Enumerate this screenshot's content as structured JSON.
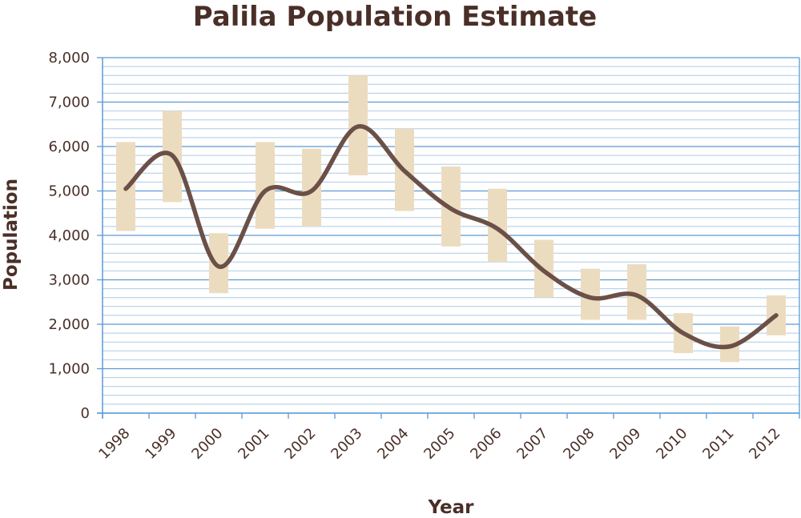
{
  "chart_data": {
    "type": "line",
    "title": "Palila Population Estimate",
    "xlabel": "Year",
    "ylabel": "Population",
    "ylim": [
      0,
      8000
    ],
    "yticks": [
      "0",
      "1,000",
      "2,000",
      "3,000",
      "4,000",
      "5,000",
      "6,000",
      "7,000",
      "8,000"
    ],
    "categories": [
      "1998",
      "1999",
      "2000",
      "2001",
      "2002",
      "2003",
      "2004",
      "2005",
      "2006",
      "2007",
      "2008",
      "2009",
      "2010",
      "2011",
      "2012"
    ],
    "series": [
      {
        "values": [
          5050,
          5800,
          3300,
          5000,
          5000,
          6450,
          5450,
          4600,
          4150,
          3200,
          2600,
          2650,
          1800,
          1500,
          2200
        ]
      }
    ],
    "error_bars": {
      "low": [
        4100,
        4750,
        2700,
        4150,
        4200,
        5350,
        4550,
        3750,
        3400,
        2600,
        2100,
        2100,
        1350,
        1150,
        1750
      ],
      "high": [
        6100,
        6800,
        4050,
        6100,
        5950,
        7600,
        6400,
        5550,
        5050,
        3900,
        3250,
        3350,
        2250,
        1950,
        2650
      ]
    },
    "grid": true,
    "colors": {
      "line": "#6b5048",
      "error_band": "#ecdcbf",
      "major_grid": "#5b9bd5",
      "minor_grid": "#aacbe8",
      "text": "#4a2f28"
    }
  }
}
